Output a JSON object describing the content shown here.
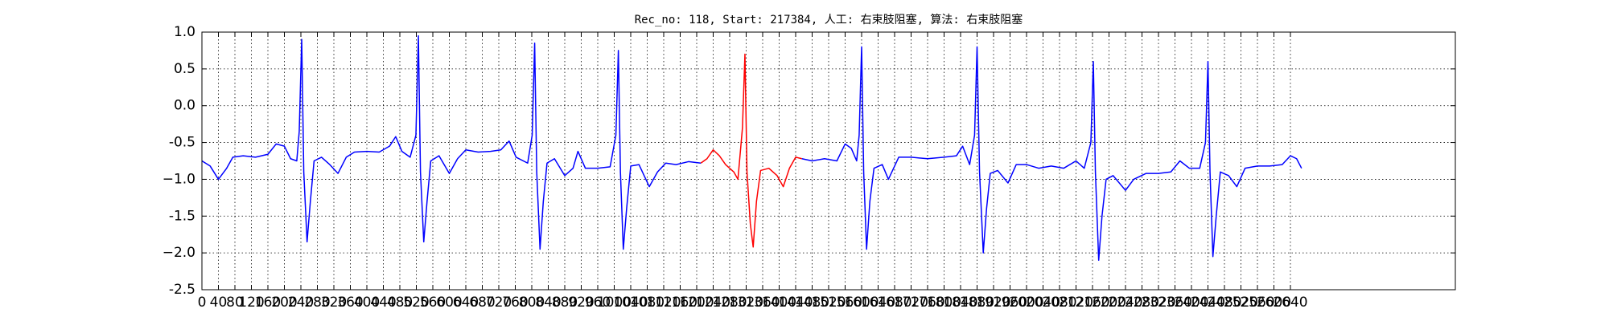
{
  "chart_data": {
    "type": "line",
    "title": "Rec_no: 118, Start: 217384, 人工: 右束肢阻塞, 算法: 右束肢阻塞",
    "x": [
      0,
      20,
      40,
      60,
      75,
      100,
      130,
      160,
      180,
      200,
      215,
      230,
      236,
      242,
      247,
      255,
      263,
      272,
      290,
      310,
      330,
      350,
      370,
      400,
      430,
      455,
      470,
      485,
      505,
      519,
      525,
      530,
      538,
      546,
      555,
      575,
      600,
      620,
      640,
      670,
      700,
      725,
      745,
      762,
      790,
      801,
      807,
      812,
      820,
      828,
      837,
      855,
      880,
      900,
      912,
      930,
      960,
      990,
      1004,
      1010,
      1015,
      1022,
      1030,
      1040,
      1060,
      1085,
      1105,
      1125,
      1150,
      1180,
      1210,
      1225,
      1240,
      1255,
      1270,
      1290,
      1300,
      1311,
      1317,
      1322,
      1330,
      1337,
      1345,
      1355,
      1375,
      1395,
      1410,
      1425,
      1440,
      1455,
      1480,
      1510,
      1540,
      1560,
      1575,
      1588,
      1594,
      1600,
      1605,
      1612,
      1620,
      1630,
      1650,
      1665,
      1690,
      1720,
      1760,
      1800,
      1830,
      1845,
      1862,
      1874,
      1880,
      1886,
      1895,
      1903,
      1912,
      1930,
      1955,
      1975,
      2000,
      2030,
      2060,
      2090,
      2120,
      2140,
      2156,
      2162,
      2167,
      2175,
      2183,
      2193,
      2210,
      2240,
      2260,
      2290,
      2320,
      2350,
      2372,
      2395,
      2420,
      2434,
      2440,
      2445,
      2452,
      2460,
      2470,
      2490,
      2510,
      2530,
      2560,
      2590,
      2620,
      2640,
      2655,
      2667
    ],
    "series": [
      {
        "color": "#0000ff",
        "values": [
          -0.75,
          -0.82,
          -1.0,
          -0.85,
          -0.7,
          -0.68,
          -0.7,
          -0.66,
          -0.52,
          -0.55,
          -0.72,
          -0.75,
          -0.35,
          0.9,
          -0.9,
          -1.85,
          -1.3,
          -0.75,
          -0.7,
          -0.8,
          -0.92,
          -0.7,
          -0.63,
          -0.62,
          -0.63,
          -0.55,
          -0.42,
          -0.62,
          -0.7,
          -0.4,
          0.95,
          -0.9,
          -1.85,
          -1.3,
          -0.75,
          -0.68,
          -0.92,
          -0.72,
          -0.6,
          -0.63,
          -0.62,
          -0.6,
          -0.48,
          -0.7,
          -0.78,
          -0.4,
          0.85,
          -0.9,
          -1.95,
          -1.3,
          -0.78,
          -0.72,
          -0.95,
          -0.85,
          -0.62,
          -0.85,
          -0.85,
          -0.83,
          -0.4,
          0.75,
          -0.9,
          -1.95,
          -1.4,
          -0.82,
          -0.8,
          -1.1,
          -0.9,
          -0.78,
          -0.8,
          -0.76,
          -0.78,
          null,
          null,
          null,
          null,
          null,
          null,
          null,
          null,
          null,
          null,
          null,
          null,
          null,
          null,
          null,
          null,
          null,
          null,
          -0.72,
          -0.75,
          -0.72,
          -0.75,
          -0.52,
          -0.58,
          -0.75,
          -0.4,
          0.8,
          -0.9,
          -1.95,
          -1.3,
          -0.85,
          -0.8,
          -1.0,
          -0.7,
          -0.7,
          -0.72,
          -0.7,
          -0.68,
          -0.55,
          -0.8,
          -0.4,
          0.8,
          -0.9,
          -2.0,
          -1.4,
          -0.92,
          -0.88,
          -1.05,
          -0.8,
          -0.8,
          -0.85,
          -0.82,
          -0.85,
          -0.75,
          -0.85,
          -0.5,
          0.6,
          -0.9,
          -2.1,
          -1.5,
          -1.0,
          -0.95,
          -1.15,
          -1.0,
          -0.92,
          -0.92,
          -0.9,
          -0.75,
          -0.85,
          -0.85,
          -0.5,
          0.6,
          -0.9,
          -2.05,
          -1.5,
          -0.9,
          -0.95,
          -1.1,
          -0.85,
          -0.82,
          -0.82,
          -0.8,
          -0.68,
          -0.72,
          -0.85
        ]
      },
      {
        "color": "#ff0000",
        "values": [
          null,
          null,
          null,
          null,
          null,
          null,
          null,
          null,
          null,
          null,
          null,
          null,
          null,
          null,
          null,
          null,
          null,
          null,
          null,
          null,
          null,
          null,
          null,
          null,
          null,
          null,
          null,
          null,
          null,
          null,
          null,
          null,
          null,
          null,
          null,
          null,
          null,
          null,
          null,
          null,
          null,
          null,
          null,
          null,
          null,
          null,
          null,
          null,
          null,
          null,
          null,
          null,
          null,
          null,
          null,
          null,
          null,
          null,
          null,
          null,
          null,
          null,
          null,
          null,
          null,
          null,
          null,
          null,
          null,
          null,
          -0.78,
          -0.72,
          -0.6,
          -0.68,
          -0.8,
          -0.9,
          -1.0,
          -0.3,
          0.7,
          -0.9,
          -1.6,
          -1.92,
          -1.3,
          -0.88,
          -0.85,
          -0.95,
          -1.1,
          -0.85,
          -0.7,
          -0.72,
          null,
          null,
          null,
          null,
          null,
          null,
          null,
          null,
          null,
          null,
          null,
          null,
          null,
          null,
          null,
          null,
          null,
          null,
          null,
          null,
          null,
          null,
          null,
          null,
          null,
          null,
          null,
          null,
          null,
          null,
          null,
          null,
          null,
          null,
          null,
          null,
          null,
          null,
          null,
          null,
          null,
          null,
          null,
          null,
          null,
          null,
          null,
          null,
          null,
          null,
          null,
          null,
          null,
          null,
          null,
          null,
          null,
          null,
          null,
          null,
          null,
          null,
          null,
          null,
          null,
          null
        ]
      }
    ],
    "xlim": [
      0,
      3040
    ],
    "xticks": [
      0,
      40,
      80,
      120,
      160,
      200,
      240,
      280,
      320,
      360,
      400,
      440,
      480,
      520,
      560,
      600,
      640,
      680,
      720,
      760,
      800,
      840,
      880,
      920,
      960,
      1000,
      1040,
      1080,
      1120,
      1160,
      1200,
      1240,
      1280,
      1320,
      1360,
      1400,
      1440,
      1480,
      1520,
      1560,
      1600,
      1640,
      1680,
      1720,
      1760,
      1800,
      1840,
      1880,
      1920,
      1960,
      2000,
      2040,
      2080,
      2120,
      2160,
      2200,
      2240,
      2280,
      2320,
      2360,
      2400,
      2440,
      2480,
      2520,
      2560,
      2600,
      2640
    ],
    "ylim": [
      -2.5,
      1.0
    ],
    "yticks": [
      -2.5,
      {
        "value": -2.0,
        "label": "−2.0"
      },
      -1.5,
      {
        "value": -1.0,
        "label": "−1.0"
      },
      -0.5,
      {
        "value": 0.0,
        "label": "0.0"
      },
      0.5,
      {
        "value": 1.0,
        "label": "1.0"
      }
    ],
    "grid": true
  }
}
